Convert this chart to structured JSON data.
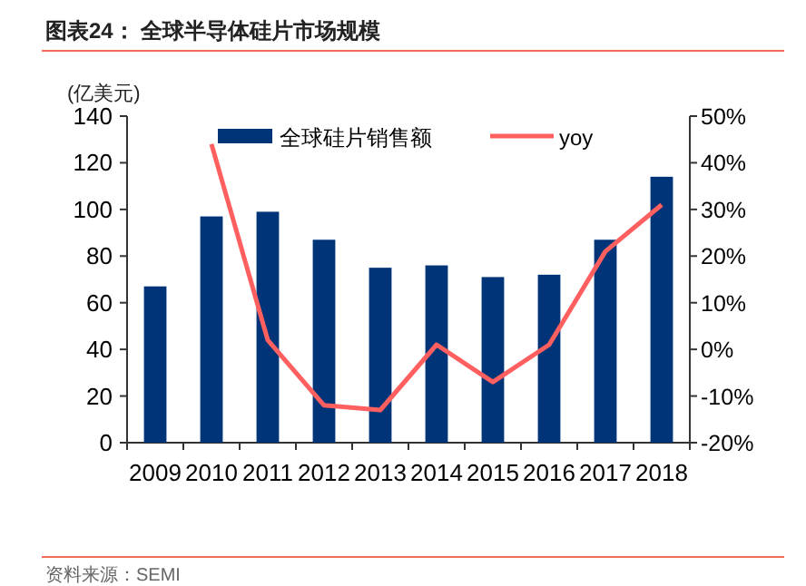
{
  "chart_data": {
    "type": "bar",
    "title": "图表24：  全球半导体硅片市场规模",
    "ylabel": "(亿美元)",
    "annotations": [
      "资料来源：SEMI"
    ],
    "categories": [
      "2009",
      "2010",
      "2011",
      "2012",
      "2013",
      "2014",
      "2015",
      "2016",
      "2017",
      "2018"
    ],
    "series": [
      {
        "name": "全球硅片销售额",
        "color": "#003478",
        "values": [
          67,
          97,
          99,
          87,
          75,
          76,
          71,
          72,
          87,
          114
        ]
      },
      {
        "name": "yoy",
        "type": "line",
        "axis": "y2",
        "color": "#ff5f5f",
        "values": [
          null,
          44,
          2,
          -12,
          -13,
          1,
          -7,
          1,
          21,
          31
        ]
      }
    ],
    "ylim": [
      0,
      140
    ],
    "yticks": [
      0,
      20,
      40,
      60,
      80,
      100,
      120,
      140
    ],
    "y2lim": [
      -20,
      50
    ],
    "y2ticks": [
      {
        "value": -20,
        "label": "-20%"
      },
      {
        "value": -10,
        "label": "-10%"
      },
      {
        "value": 0,
        "label": "0%"
      },
      {
        "value": 10,
        "label": "10%"
      },
      {
        "value": 20,
        "label": "20%"
      },
      {
        "value": 30,
        "label": "30%"
      },
      {
        "value": 40,
        "label": "40%"
      },
      {
        "value": 50,
        "label": "50%"
      }
    ],
    "legend": "top",
    "grid": false,
    "marker": "none",
    "line_style": "solid"
  }
}
